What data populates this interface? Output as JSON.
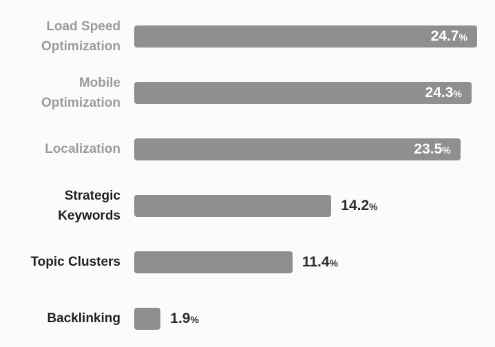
{
  "chart_data": {
    "type": "bar",
    "orientation": "horizontal",
    "title": "",
    "xlabel": "",
    "ylabel": "",
    "xlim": [
      0,
      25
    ],
    "grid": false,
    "legend": false,
    "categories": [
      "Load Speed Optimization",
      "Mobile Optimization",
      "Localization",
      "Strategic Keywords",
      "Topic Clusters",
      "Backlinking"
    ],
    "values": [
      24.7,
      24.3,
      23.5,
      14.2,
      11.4,
      1.9
    ],
    "value_labels": [
      "24.7",
      "24.3",
      "23.5",
      "14.2",
      "11.4",
      "1.9"
    ],
    "unit": "%",
    "value_label_placement": [
      "inside",
      "inside",
      "inside",
      "outside",
      "outside",
      "outside"
    ],
    "bar_color": "#8f8f8f",
    "inside_value_color": "#ffffff",
    "outside_value_color": "#2b2b2b",
    "category_colors": [
      "#9b9b9b",
      "#9b9b9b",
      "#9b9b9b",
      "#1f1f1f",
      "#1f1f1f",
      "#1f1f1f"
    ],
    "background_color": "#fbfbfb"
  }
}
